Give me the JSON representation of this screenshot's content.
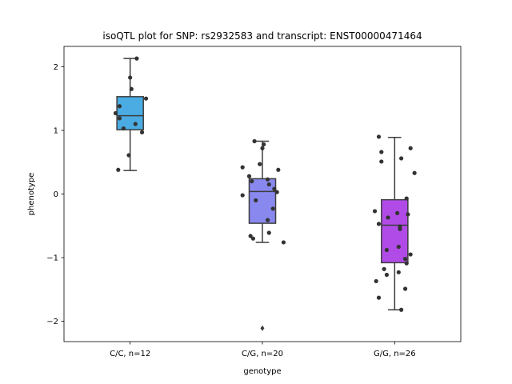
{
  "chart_data": {
    "type": "box",
    "title": "isoQTL plot for SNP: rs2932583 and transcript: ENST00000471464",
    "xlabel": "genotype",
    "ylabel": "phenotype",
    "ylim": [
      -2.32,
      2.32
    ],
    "yticks": [
      -2,
      -1,
      0,
      1,
      2
    ],
    "ytick_labels": [
      "−2",
      "−1",
      "0",
      "1",
      "2"
    ],
    "grid": false,
    "categories": [
      "C/C, n=12",
      "C/G, n=20",
      "G/G, n=26"
    ],
    "colors": [
      "#4aace3",
      "#8888ee",
      "#b14be8"
    ],
    "boxes": [
      {
        "q1": 1.01,
        "median": 1.23,
        "q3": 1.53,
        "whisker_low": 0.37,
        "whisker_high": 2.13,
        "fliers": []
      },
      {
        "q1": -0.46,
        "median": 0.04,
        "q3": 0.24,
        "whisker_low": -0.76,
        "whisker_high": 0.83,
        "fliers": [
          -2.11
        ]
      },
      {
        "q1": -1.08,
        "median": -0.49,
        "q3": -0.09,
        "whisker_low": -1.82,
        "whisker_high": 0.89,
        "fliers": []
      }
    ],
    "points": [
      [
        {
          "dx": 0.05,
          "y": 2.13
        },
        {
          "dx": 0.0,
          "y": 1.83
        },
        {
          "dx": 0.01,
          "y": 1.65
        },
        {
          "dx": 0.12,
          "y": 1.5
        },
        {
          "dx": -0.08,
          "y": 1.38
        },
        {
          "dx": -0.11,
          "y": 1.27
        },
        {
          "dx": -0.08,
          "y": 1.19
        },
        {
          "dx": 0.04,
          "y": 1.1
        },
        {
          "dx": -0.05,
          "y": 1.03
        },
        {
          "dx": 0.09,
          "y": 0.97
        },
        {
          "dx": -0.01,
          "y": 0.61
        },
        {
          "dx": -0.09,
          "y": 0.38
        }
      ],
      [
        {
          "dx": -0.06,
          "y": 0.83
        },
        {
          "dx": 0.01,
          "y": 0.78
        },
        {
          "dx": -0.02,
          "y": 0.47
        },
        {
          "dx": -0.15,
          "y": 0.42
        },
        {
          "dx": -0.1,
          "y": 0.28
        },
        {
          "dx": 0.04,
          "y": 0.23
        },
        {
          "dx": -0.08,
          "y": 0.2
        },
        {
          "dx": 0.05,
          "y": 0.15
        },
        {
          "dx": 0.09,
          "y": 0.08
        },
        {
          "dx": 0.11,
          "y": 0.03
        },
        {
          "dx": -0.15,
          "y": -0.02
        },
        {
          "dx": -0.05,
          "y": -0.1
        },
        {
          "dx": 0.08,
          "y": -0.23
        },
        {
          "dx": 0.04,
          "y": -0.41
        },
        {
          "dx": -0.09,
          "y": -0.66
        },
        {
          "dx": -0.07,
          "y": -0.7
        },
        {
          "dx": 0.05,
          "y": -0.61
        },
        {
          "dx": 0.16,
          "y": -0.76
        },
        {
          "dx": 0.0,
          "y": 0.72
        },
        {
          "dx": 0.12,
          "y": 0.38
        }
      ],
      [
        {
          "dx": -0.12,
          "y": 0.9
        },
        {
          "dx": 0.12,
          "y": 0.72
        },
        {
          "dx": -0.1,
          "y": 0.66
        },
        {
          "dx": 0.05,
          "y": 0.56
        },
        {
          "dx": -0.1,
          "y": 0.51
        },
        {
          "dx": 0.15,
          "y": 0.33
        },
        {
          "dx": 0.09,
          "y": -0.07
        },
        {
          "dx": -0.15,
          "y": -0.27
        },
        {
          "dx": 0.1,
          "y": -0.32
        },
        {
          "dx": -0.05,
          "y": -0.37
        },
        {
          "dx": -0.12,
          "y": -0.47
        },
        {
          "dx": 0.04,
          "y": -0.51
        },
        {
          "dx": 0.04,
          "y": -0.55
        },
        {
          "dx": 0.03,
          "y": -0.83
        },
        {
          "dx": -0.06,
          "y": -0.88
        },
        {
          "dx": 0.12,
          "y": -0.95
        },
        {
          "dx": 0.08,
          "y": -1.02
        },
        {
          "dx": 0.09,
          "y": -1.09
        },
        {
          "dx": -0.08,
          "y": -1.18
        },
        {
          "dx": 0.03,
          "y": -1.23
        },
        {
          "dx": -0.06,
          "y": -1.27
        },
        {
          "dx": -0.14,
          "y": -1.37
        },
        {
          "dx": 0.08,
          "y": -1.49
        },
        {
          "dx": -0.12,
          "y": -1.63
        },
        {
          "dx": 0.05,
          "y": -1.82
        },
        {
          "dx": 0.02,
          "y": -0.3
        }
      ]
    ]
  }
}
